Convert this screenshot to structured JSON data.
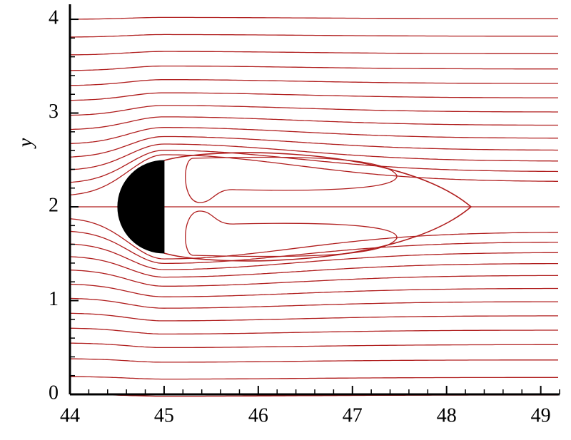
{
  "chart_data": {
    "type": "streamline",
    "ylabel": "y",
    "xlim": [
      44,
      49.2
    ],
    "ylim": [
      0,
      4.16
    ],
    "xticks": [
      44,
      45,
      46,
      47,
      48,
      49
    ],
    "yticks": [
      0,
      1,
      2,
      3,
      4
    ],
    "color": "#b01e1e"
  }
}
